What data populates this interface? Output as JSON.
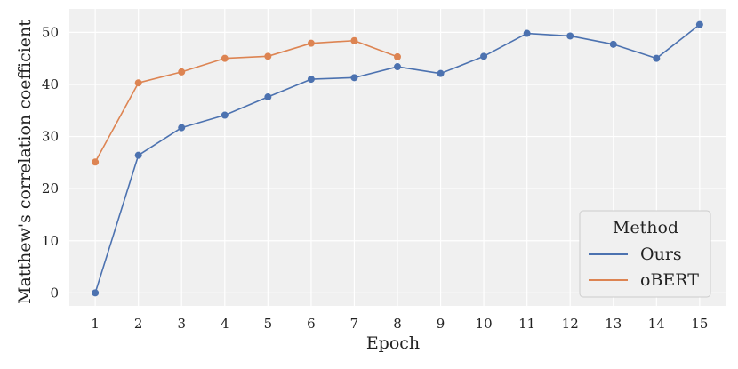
{
  "chart_data": {
    "type": "line",
    "title": "",
    "xlabel": "Epoch",
    "ylabel": "Matthew's correlation coefficient",
    "x_ticks": [
      1,
      2,
      3,
      4,
      5,
      6,
      7,
      8,
      9,
      10,
      11,
      12,
      13,
      14,
      15
    ],
    "y_ticks": [
      0,
      10,
      20,
      30,
      40,
      50
    ],
    "xlim": [
      0.4,
      15.6
    ],
    "ylim": [
      -2.5,
      54.5
    ],
    "grid": true,
    "legend": {
      "title": "Method",
      "placement": "bottom-right"
    },
    "series": [
      {
        "name": "Ours",
        "color": "#4c72b0",
        "x": [
          1,
          2,
          3,
          4,
          5,
          6,
          7,
          8,
          9,
          10,
          11,
          12,
          13,
          14,
          15
        ],
        "y": [
          0.0,
          26.4,
          31.7,
          34.1,
          37.6,
          41.0,
          41.3,
          43.4,
          42.1,
          45.4,
          49.8,
          49.3,
          47.7,
          45.0,
          51.5
        ]
      },
      {
        "name": "oBERT",
        "color": "#dd8452",
        "x": [
          1,
          2,
          3,
          4,
          5,
          6,
          7,
          8
        ],
        "y": [
          25.1,
          40.3,
          42.4,
          45.0,
          45.4,
          47.9,
          48.4,
          45.3
        ]
      }
    ]
  }
}
